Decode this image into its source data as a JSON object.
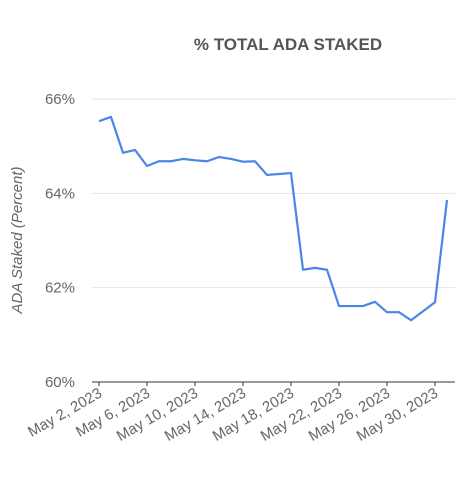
{
  "chart_data": {
    "type": "line",
    "title": "% TOTAL ADA STAKED",
    "y_label": "ADA Staked (Percent)",
    "x": [
      "2023-05-02",
      "2023-05-03",
      "2023-05-04",
      "2023-05-05",
      "2023-05-06",
      "2023-05-07",
      "2023-05-08",
      "2023-05-09",
      "2023-05-10",
      "2023-05-11",
      "2023-05-12",
      "2023-05-13",
      "2023-05-14",
      "2023-05-15",
      "2023-05-16",
      "2023-05-17",
      "2023-05-18",
      "2023-05-19",
      "2023-05-20",
      "2023-05-21",
      "2023-05-22",
      "2023-05-23",
      "2023-05-24",
      "2023-05-25",
      "2023-05-26",
      "2023-05-27",
      "2023-05-28",
      "2023-05-29",
      "2023-05-30",
      "2023-05-31"
    ],
    "series": [
      {
        "name": "ADA Staked",
        "color": "#4a86e8",
        "values": [
          65.53,
          65.62,
          64.86,
          64.92,
          64.58,
          64.68,
          64.68,
          64.73,
          64.7,
          64.68,
          64.77,
          64.73,
          64.67,
          64.68,
          64.39,
          64.41,
          64.43,
          62.38,
          62.42,
          62.38,
          61.61,
          61.61,
          61.61,
          61.7,
          61.48,
          61.48,
          61.31,
          61.5,
          61.69,
          63.86
        ]
      }
    ],
    "xlim": [
      "2023-05-02",
      "2023-05-31"
    ],
    "xticks": [
      {
        "value": "2023-05-02",
        "label": "May 2, 2023"
      },
      {
        "value": "2023-05-06",
        "label": "May 6, 2023"
      },
      {
        "value": "2023-05-10",
        "label": "May 10, 2023"
      },
      {
        "value": "2023-05-14",
        "label": "May 14, 2023"
      },
      {
        "value": "2023-05-18",
        "label": "May 18, 2023"
      },
      {
        "value": "2023-05-22",
        "label": "May 22, 2023"
      },
      {
        "value": "2023-05-26",
        "label": "May 26, 2023"
      },
      {
        "value": "2023-05-30",
        "label": "May 30, 2023"
      }
    ],
    "ylim": [
      60,
      66
    ],
    "yticks": [
      {
        "value": 60,
        "label": "60%"
      },
      {
        "value": 62,
        "label": "62%"
      },
      {
        "value": 64,
        "label": "64%"
      },
      {
        "value": 66,
        "label": "66%"
      }
    ],
    "grid": true
  }
}
